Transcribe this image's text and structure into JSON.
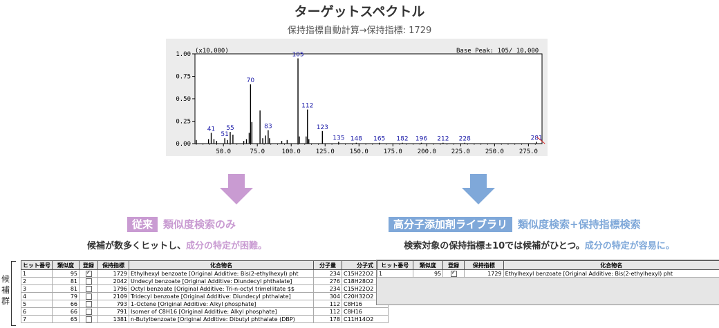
{
  "header": {
    "title": "ターゲットスペクトル",
    "subtitle": "保持指標自動計算→保持指標: 1729"
  },
  "spectrum": {
    "scale_label": "(x10,000)",
    "base_peak_label": "Base Peak: 105/ 10,000"
  },
  "chart_data": {
    "type": "bar",
    "xlim": [
      29,
      285
    ],
    "ylim": [
      0,
      1.0
    ],
    "x_ticks": [
      "50.0",
      "75.0",
      "100.0",
      "125.0",
      "150.0",
      "175.0",
      "200.0",
      "225.0",
      "250.0",
      "275.0"
    ],
    "y_ticks": [
      "0.00",
      "0.25",
      "0.50",
      "0.75",
      "1.00"
    ],
    "peaks": [
      {
        "x": 30,
        "y": 0.04
      },
      {
        "x": 39,
        "y": 0.05
      },
      {
        "x": 41,
        "y": 0.12,
        "label": "41"
      },
      {
        "x": 43,
        "y": 0.05
      },
      {
        "x": 45,
        "y": 0.03
      },
      {
        "x": 51,
        "y": 0.06,
        "label": "51"
      },
      {
        "x": 53,
        "y": 0.04
      },
      {
        "x": 55,
        "y": 0.13,
        "label": "55"
      },
      {
        "x": 57,
        "y": 0.1
      },
      {
        "x": 65,
        "y": 0.03
      },
      {
        "x": 67,
        "y": 0.05
      },
      {
        "x": 69,
        "y": 0.12
      },
      {
        "x": 70,
        "y": 0.66,
        "label": "70"
      },
      {
        "x": 71,
        "y": 0.24
      },
      {
        "x": 77,
        "y": 0.37
      },
      {
        "x": 79,
        "y": 0.06
      },
      {
        "x": 81,
        "y": 0.09
      },
      {
        "x": 83,
        "y": 0.15,
        "label": "83"
      },
      {
        "x": 84,
        "y": 0.06
      },
      {
        "x": 93,
        "y": 0.03
      },
      {
        "x": 97,
        "y": 0.04
      },
      {
        "x": 105,
        "y": 0.95,
        "label": "105"
      },
      {
        "x": 106,
        "y": 0.08
      },
      {
        "x": 111,
        "y": 0.08
      },
      {
        "x": 112,
        "y": 0.38,
        "label": "112"
      },
      {
        "x": 113,
        "y": 0.05
      },
      {
        "x": 123,
        "y": 0.14,
        "label": "123"
      },
      {
        "x": 135,
        "y": 0.02,
        "label": "135"
      },
      {
        "x": 148,
        "y": 0.01,
        "label": "148"
      },
      {
        "x": 165,
        "y": 0.01,
        "label": "165"
      },
      {
        "x": 182,
        "y": 0.01,
        "label": "182"
      },
      {
        "x": 196,
        "y": 0.01,
        "label": "196"
      },
      {
        "x": 212,
        "y": 0.01,
        "label": "212"
      },
      {
        "x": 228,
        "y": 0.01,
        "label": "228"
      },
      {
        "x": 281,
        "y": 0.02,
        "label": "281"
      }
    ]
  },
  "left": {
    "tag": "従来",
    "heading_rest": "類似度検索のみ",
    "desc_plain": "候補が数多くヒットし、",
    "desc_accent": "成分の特定が困難。",
    "candidates_label": "候補群",
    "columns": [
      "ヒット番号",
      "類似度",
      "登録",
      "保持指標",
      "化合物名",
      "分子量",
      "分子式"
    ],
    "rows": [
      {
        "hit": "1",
        "sim": "95",
        "reg": true,
        "ri": "1729",
        "name": "Ethylhexyl benzoate      [Original Additive: Bis(2-ethylhexyl) pht",
        "mw": "234",
        "formula": "C15H22O2"
      },
      {
        "hit": "2",
        "sim": "81",
        "reg": false,
        "ri": "2042",
        "name": "Undecyl benzoate      [Original Additive: Diundecyl phthalate]",
        "mw": "276",
        "formula": "C18H28O2"
      },
      {
        "hit": "3",
        "sim": "81",
        "reg": false,
        "ri": "1796",
        "name": "Octyl benzoate      [Original Additive: Tri-n-octyl trimellitate $$",
        "mw": "234",
        "formula": "C15H22O2"
      },
      {
        "hit": "4",
        "sim": "79",
        "reg": false,
        "ri": "2109",
        "name": "Tridecyl benzoate      [Original Additive: Diundecyl phthalate]",
        "mw": "304",
        "formula": "C20H32O2"
      },
      {
        "hit": "5",
        "sim": "66",
        "reg": false,
        "ri": "793",
        "name": "1-Octene      [Original Additive: Alkyl phosphate]",
        "mw": "112",
        "formula": "C8H16"
      },
      {
        "hit": "6",
        "sim": "66",
        "reg": false,
        "ri": "791",
        "name": "Isomer of C8H16      [Original Additive: Alkyl phosphate]",
        "mw": "112",
        "formula": "C8H16"
      },
      {
        "hit": "7",
        "sim": "65",
        "reg": false,
        "ri": "1381",
        "name": "n-Butylbenzoate      [Original Additive: Dibutyl phthalate (DBP)",
        "mw": "178",
        "formula": "C11H14O2"
      }
    ]
  },
  "right": {
    "tag": "高分子添加剤ライブラリ",
    "heading_rest": "類似度検索+保持指標検索",
    "desc_plain": "検索対象の保持指標±10では候補がひとつ。",
    "desc_accent": "成分の特定が容易に。",
    "columns": [
      "ヒット番号",
      "類似度",
      "登録",
      "保持指標",
      "化合物名"
    ],
    "rows": [
      {
        "hit": "1",
        "sim": "95",
        "reg": true,
        "ri": "1729",
        "name": "Ethylhexyl benzoate      [Original Additive: Bis(2-ethylhexyl) pht"
      }
    ]
  },
  "colors": {
    "conventional": "#c99bd2",
    "library": "#7fa8d9",
    "peak_label": "#1a1aa8"
  }
}
